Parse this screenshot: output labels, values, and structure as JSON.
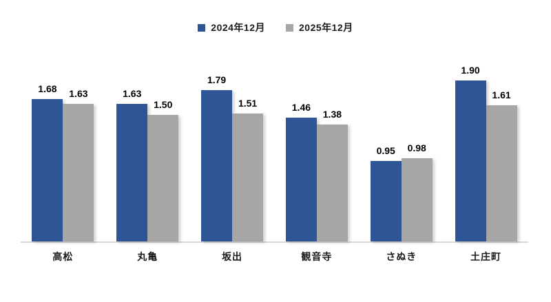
{
  "chart_data": {
    "type": "bar",
    "title": "",
    "xlabel": "",
    "ylabel": "",
    "categories": [
      "高松",
      "丸亀",
      "坂出",
      "観音寺",
      "さぬき",
      "土庄町"
    ],
    "series": [
      {
        "name": "2024年12月",
        "color": "#2F5597",
        "values": [
          1.68,
          1.63,
          1.79,
          1.46,
          0.95,
          1.9
        ]
      },
      {
        "name": "2025年12月",
        "color": "#A6A6A6",
        "values": [
          1.63,
          1.5,
          1.51,
          1.38,
          0.98,
          1.61
        ]
      }
    ],
    "ylim": [
      0,
      2.0
    ],
    "grid": false,
    "legend_position": "top-center",
    "data_labels": true,
    "data_label_format": "0.00",
    "axis_line_color": "#D9D9D9",
    "background_color": "#FFFFFF"
  }
}
